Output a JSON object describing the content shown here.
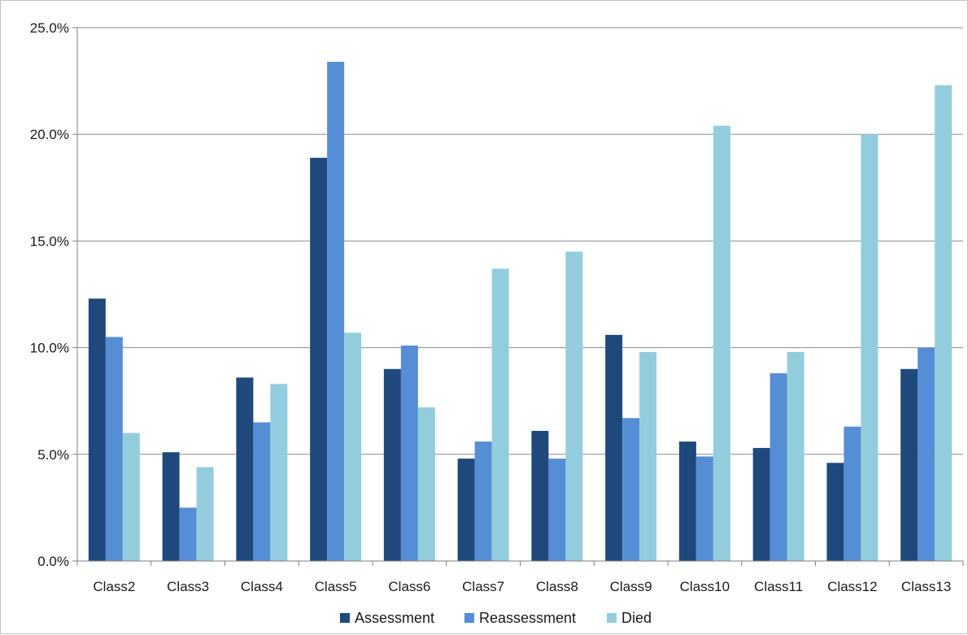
{
  "chart_data": {
    "type": "bar",
    "title": "",
    "xlabel": "",
    "ylabel": "",
    "categories": [
      "Class2",
      "Class3",
      "Class4",
      "Class5",
      "Class6",
      "Class7",
      "Class8",
      "Class9",
      "Class10",
      "Class11",
      "Class12",
      "Class13"
    ],
    "series": [
      {
        "name": "Assessment",
        "color": "#1f497d",
        "values": [
          12.3,
          5.1,
          8.6,
          18.9,
          9.0,
          4.8,
          6.1,
          10.6,
          5.6,
          5.3,
          4.6,
          9.0
        ]
      },
      {
        "name": "Reassessment",
        "color": "#558ed5",
        "values": [
          10.5,
          2.5,
          6.5,
          23.4,
          10.1,
          5.6,
          4.8,
          6.7,
          4.9,
          8.8,
          6.3,
          10.0
        ]
      },
      {
        "name": "Died",
        "color": "#93cddd",
        "values": [
          6.0,
          4.4,
          8.3,
          10.7,
          7.2,
          13.7,
          14.5,
          9.8,
          20.4,
          9.8,
          20.0,
          22.3
        ]
      }
    ],
    "ylim": [
      0,
      25
    ],
    "yticks": [
      "0.0%",
      "5.0%",
      "10.0%",
      "15.0%",
      "20.0%",
      "25.0%"
    ],
    "ytick_values": [
      0,
      5,
      10,
      15,
      20,
      25
    ],
    "grid": true,
    "legend_position": "bottom"
  }
}
